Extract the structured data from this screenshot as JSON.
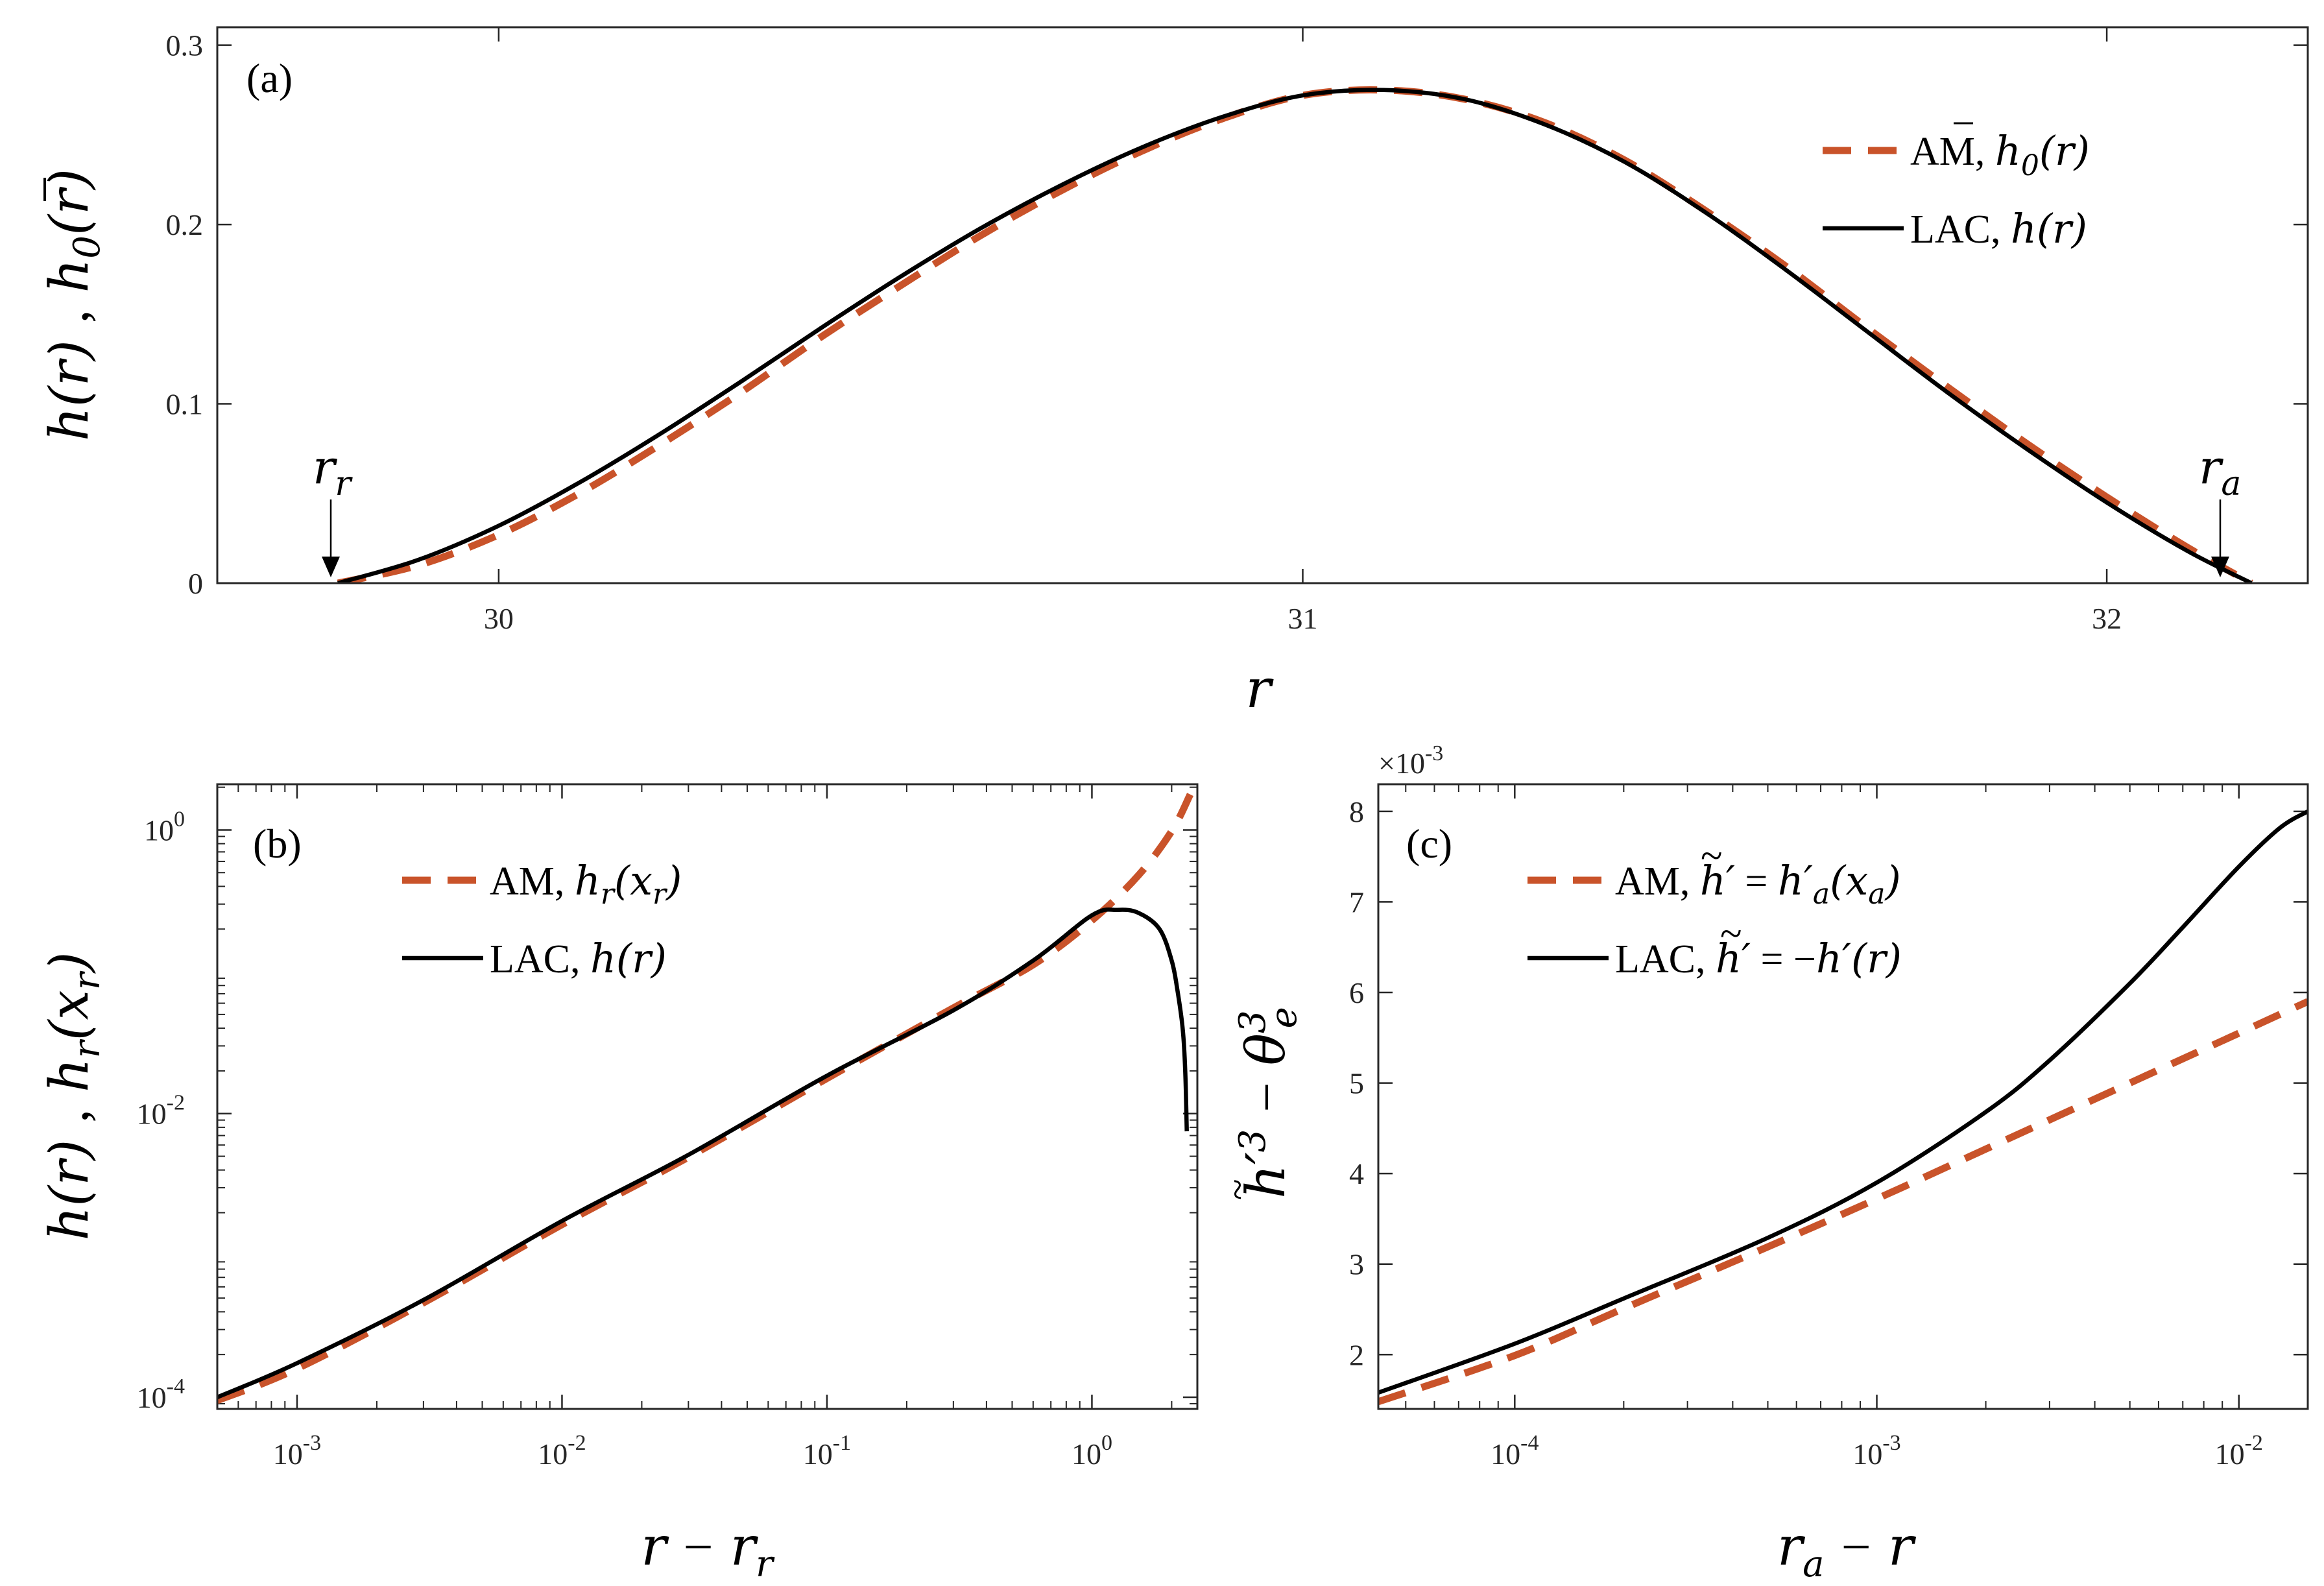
{
  "colors": {
    "am": "#c9532a",
    "lac": "#000000",
    "axis": "#262626"
  },
  "chart_data": [
    {
      "panel": "(a)",
      "type": "line",
      "xlabel": "r",
      "ylabel": "h(r) , h̄₀(r)",
      "xlim": [
        29.65,
        32.25
      ],
      "ylim": [
        0,
        0.31
      ],
      "xticks": [
        30,
        31,
        32
      ],
      "xtick_labels": [
        "30",
        "31",
        "32"
      ],
      "yticks": [
        0,
        0.1,
        0.2,
        0.3
      ],
      "ytick_labels": [
        "0",
        "0.1",
        "0.2",
        "0.3"
      ],
      "legend_position": "top-right",
      "annotations": [
        {
          "label": "r_r",
          "x": 29.8,
          "y": 0
        },
        {
          "label": "r_a",
          "x": 32.18,
          "y": 0
        }
      ],
      "series": [
        {
          "name": "AM, h̄₀(r)",
          "style": "dashed",
          "x": [
            29.8,
            29.9,
            30.0,
            30.1,
            30.2,
            30.3,
            30.4,
            30.5,
            30.6,
            30.7,
            30.8,
            30.9,
            31.0,
            31.1,
            31.2,
            31.3,
            31.4,
            31.5,
            31.6,
            31.7,
            31.8,
            31.9,
            32.0,
            32.1,
            32.18
          ],
          "y": [
            0.0,
            0.01,
            0.027,
            0.05,
            0.077,
            0.106,
            0.137,
            0.166,
            0.194,
            0.219,
            0.241,
            0.259,
            0.272,
            0.275,
            0.27,
            0.257,
            0.236,
            0.208,
            0.177,
            0.143,
            0.11,
            0.078,
            0.048,
            0.02,
            0.0
          ]
        },
        {
          "name": "LAC, h(r)",
          "style": "solid",
          "x": [
            29.8,
            29.9,
            30.0,
            30.1,
            30.2,
            30.3,
            30.4,
            30.5,
            30.6,
            30.7,
            30.8,
            30.9,
            31.0,
            31.1,
            31.2,
            31.3,
            31.4,
            31.5,
            31.6,
            31.7,
            31.8,
            31.9,
            32.0,
            32.1,
            32.18
          ],
          "y": [
            0.0,
            0.013,
            0.032,
            0.056,
            0.083,
            0.112,
            0.142,
            0.171,
            0.198,
            0.222,
            0.243,
            0.26,
            0.272,
            0.275,
            0.27,
            0.256,
            0.235,
            0.207,
            0.175,
            0.141,
            0.107,
            0.075,
            0.045,
            0.018,
            0.0
          ]
        }
      ]
    },
    {
      "panel": "(b)",
      "type": "line",
      "xlabel": "r − r_r",
      "ylabel": "h(r) , h_r(x_r)",
      "xscale": "log",
      "yscale": "log",
      "xlim": [
        0.0005,
        2.5
      ],
      "ylim": [
        8.27e-05,
        2.1
      ],
      "xticks": [
        0.001,
        0.01,
        0.1,
        1
      ],
      "xtick_labels": [
        [
          "10",
          "-3"
        ],
        [
          "10",
          "-2"
        ],
        [
          "10",
          "-1"
        ],
        [
          "10",
          "0"
        ]
      ],
      "yticks": [
        0.0001,
        0.01,
        1
      ],
      "ytick_labels": [
        [
          "10",
          "-4"
        ],
        [
          "10",
          "-2"
        ],
        [
          "10",
          "0"
        ]
      ],
      "legend_position": "top-left",
      "series": [
        {
          "name": "AM, h_r(x_r)",
          "style": "dashed",
          "x": [
            0.0005,
            0.001,
            0.003,
            0.01,
            0.03,
            0.1,
            0.3,
            0.6,
            1.0,
            1.5,
            2.0,
            2.35
          ],
          "y": [
            9.48e-05,
            0.000159,
            0.000463,
            0.00165,
            0.00493,
            0.0177,
            0.0556,
            0.112,
            0.23,
            0.48,
            0.98,
            1.78
          ]
        },
        {
          "name": "LAC, h(r)",
          "style": "solid",
          "x": [
            0.0005,
            0.001,
            0.003,
            0.01,
            0.03,
            0.1,
            0.3,
            0.6,
            1.0,
            1.25,
            1.5,
            1.8,
            2.0,
            2.1,
            2.2,
            2.25,
            2.28
          ],
          "y": [
            0.0001,
            0.000174,
            0.000485,
            0.00175,
            0.00512,
            0.0185,
            0.0535,
            0.12,
            0.25,
            0.273,
            0.26,
            0.2,
            0.12,
            0.075,
            0.04,
            0.02,
            0.0075
          ]
        }
      ]
    },
    {
      "panel": "(c)",
      "type": "line",
      "xlabel": "r_a − r",
      "ylabel": "h̃′³ − θ_e³",
      "xscale": "log",
      "xlim": [
        4.2e-05,
        0.0155
      ],
      "ylim": [
        0.0014,
        0.0083
      ],
      "y_multiplier": "×10⁻³",
      "xticks": [
        0.0001,
        0.001,
        0.01
      ],
      "xtick_labels": [
        [
          "10",
          "-4"
        ],
        [
          "10",
          "-3"
        ],
        [
          "10",
          "-2"
        ]
      ],
      "yticks": [
        0.002,
        0.003,
        0.004,
        0.005,
        0.006,
        0.007,
        0.008
      ],
      "ytick_labels": [
        "2",
        "3",
        "4",
        "5",
        "6",
        "7",
        "8"
      ],
      "legend_position": "top-left",
      "series": [
        {
          "name": "AM, h̃′ = h′_a(x_a)",
          "style": "dashed",
          "x": [
            4.2e-05,
            0.0001,
            0.0002,
            0.0005,
            0.001,
            0.002,
            0.005,
            0.01,
            0.0155
          ],
          "y": [
            0.00148,
            0.00199,
            0.00251,
            0.00319,
            0.00372,
            0.00427,
            0.005,
            0.00555,
            0.0059
          ]
        },
        {
          "name": "LAC, h̃′ = −h′(r)",
          "style": "solid",
          "x": [
            4.2e-05,
            0.0001,
            0.0002,
            0.0005,
            0.001,
            0.002,
            0.003,
            0.005,
            0.007,
            0.01,
            0.013,
            0.0155
          ],
          "y": [
            0.00158,
            0.00212,
            0.00262,
            0.00329,
            0.0039,
            0.00468,
            0.00525,
            0.0061,
            0.00672,
            0.00739,
            0.00782,
            0.008
          ]
        }
      ]
    }
  ]
}
